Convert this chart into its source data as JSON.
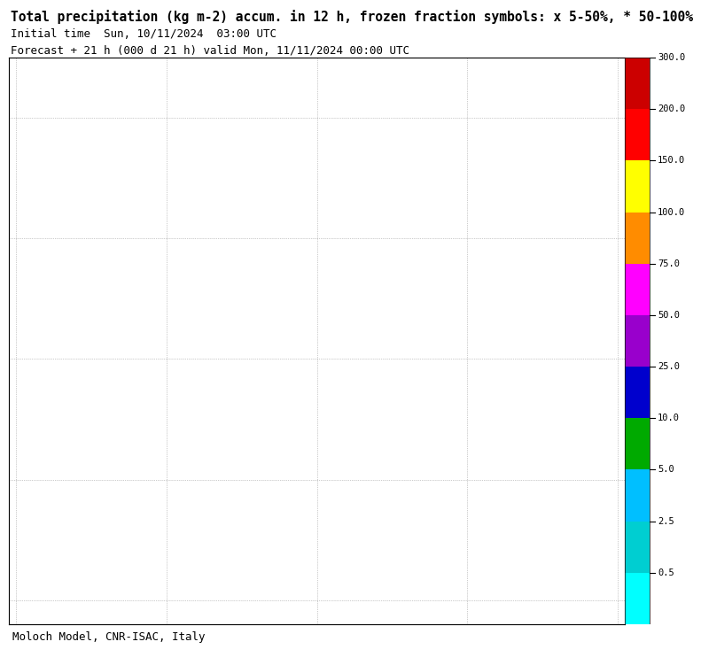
{
  "title_line1": "Total precipitation (kg m-2) accum. in 12 h, frozen fraction symbols: x 5-50%, * 50-100%",
  "title_line2": "Initial time  Sun, 10/11/2024  03:00 UTC",
  "title_line3": "Forecast + 21 h (000 d 21 h) valid Mon, 11/11/2024 00:00 UTC",
  "footer": "Moloch Model, CNR-ISAC, Italy",
  "cb_tick_labels": [
    "300.0",
    "200.0",
    "150.0",
    "100.0",
    "75.0",
    "50.0",
    "25.0",
    "10.0",
    "5.0",
    "2.5",
    "0.5"
  ],
  "cb_colors": [
    "#CC0000",
    "#FF0000",
    "#FFFF00",
    "#FF8C00",
    "#FF00FF",
    "#9900CC",
    "#0000CD",
    "#00AA00",
    "#00BFFF",
    "#00CED1",
    "#00FFFF",
    "#E0FFFF"
  ],
  "background_color": "#ffffff",
  "title_fontsize": 10.5,
  "subtitle_fontsize": 9,
  "footer_fontsize": 9,
  "map_extent": [
    -10.5,
    30.5,
    29.0,
    52.5
  ],
  "grid_lons": [
    -10,
    0,
    10,
    20,
    30
  ],
  "grid_lats": [
    30,
    35,
    40,
    45,
    50
  ],
  "fig_width": 7.6,
  "fig_height": 7.31
}
